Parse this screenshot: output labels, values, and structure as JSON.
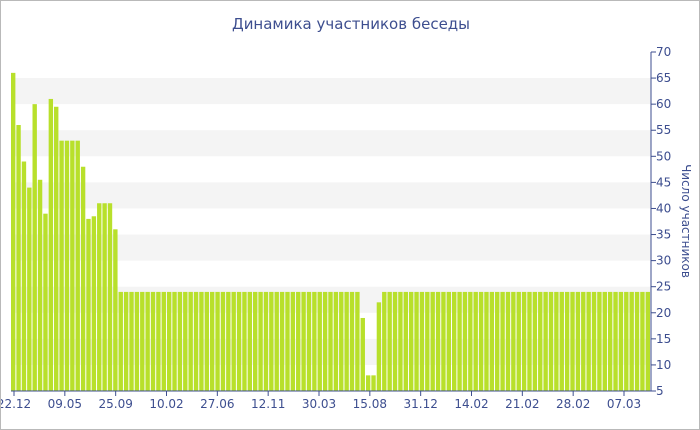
{
  "colors": {
    "bar": "#b8e02b",
    "band": "#f4f4f4",
    "axis": "#3d4e8f",
    "text": "#3d4e8f",
    "border": "#b9b9b9"
  },
  "chart_data": {
    "type": "bar",
    "title": "Динамика участников беседы",
    "xlabel": "",
    "ylabel": "Число участников",
    "ylim": [
      5,
      70
    ],
    "yticks": [
      5,
      10,
      15,
      20,
      25,
      30,
      35,
      40,
      45,
      50,
      55,
      60,
      65,
      70
    ],
    "grid": "alternating horizontal bands",
    "y_axis_side": "right",
    "xtick_labels": [
      "22.12",
      "09.05",
      "25.09",
      "10.02",
      "27.06",
      "12.11",
      "30.03",
      "15.08",
      "31.12",
      "14.02",
      "21.02",
      "28.02",
      "07.03"
    ],
    "values": [
      66,
      56,
      49,
      44,
      60,
      45.5,
      39,
      61,
      59.5,
      53,
      53,
      53,
      53,
      48,
      38,
      38.5,
      41,
      41,
      41,
      36,
      24,
      24,
      24,
      24,
      24,
      24,
      24,
      24,
      24,
      24,
      24,
      24,
      24,
      24,
      24,
      24,
      24,
      24,
      24,
      24,
      24,
      24,
      24,
      24,
      24,
      24,
      24,
      24,
      24,
      24,
      24,
      24,
      24,
      24,
      24,
      24,
      24,
      24,
      24,
      24,
      24,
      24,
      24,
      24,
      24,
      19,
      8,
      8,
      22,
      24,
      24,
      24,
      24,
      24,
      24,
      24,
      24,
      24,
      24,
      24,
      24,
      24,
      24,
      24,
      24,
      24,
      24,
      24,
      24,
      24,
      24,
      24,
      24,
      24,
      24,
      24,
      24,
      24,
      24,
      24,
      24,
      24,
      24,
      24,
      24,
      24,
      24,
      24,
      24,
      24,
      24,
      24,
      24,
      24,
      24,
      24,
      24,
      24,
      24
    ]
  }
}
